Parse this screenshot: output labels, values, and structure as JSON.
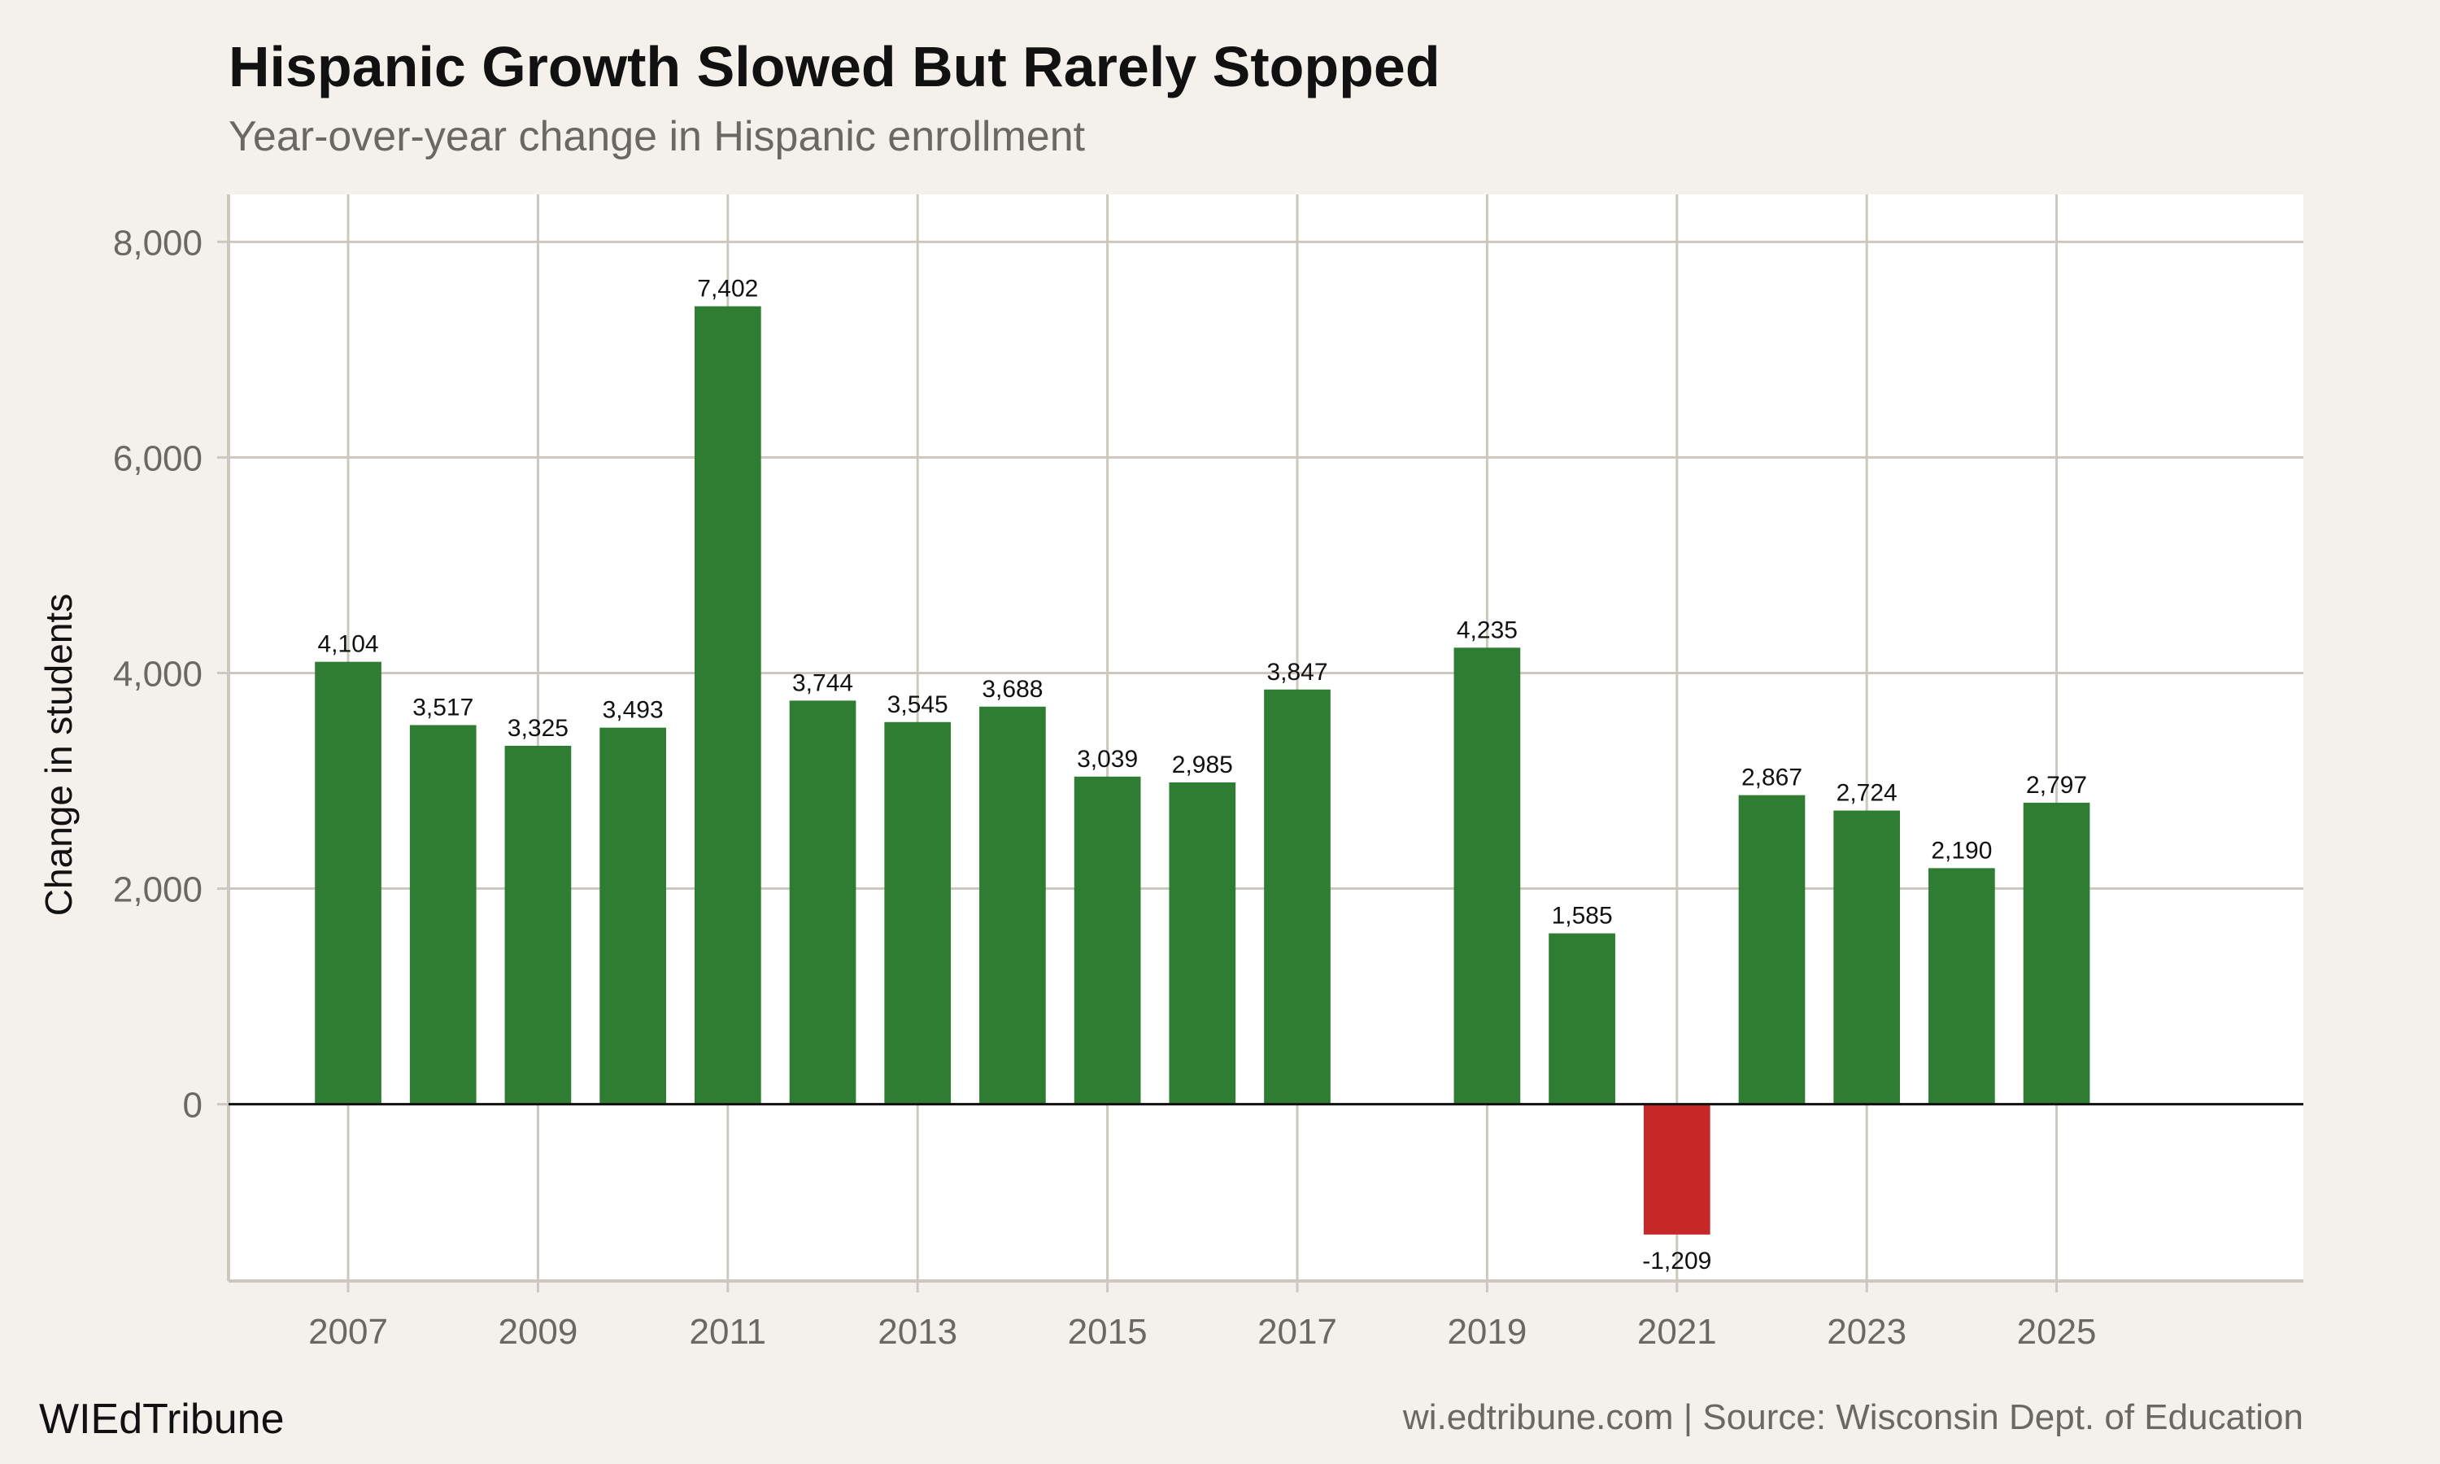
{
  "title": "Hispanic Growth Slowed But Rarely Stopped",
  "subtitle": "Year-over-year change in Hispanic enrollment",
  "brand": "WIEdTribune",
  "source": "wi.edtribune.com | Source: Wisconsin Dept. of Education",
  "colors": {
    "positive": "#2e7d32",
    "negative": "#c62828",
    "grid": "#cdc8bf",
    "background": "#f4f1ec",
    "panel": "#ffffff"
  },
  "chart_data": {
    "type": "bar",
    "title": "Hispanic Growth Slowed But Rarely Stopped",
    "subtitle": "Year-over-year change in Hispanic enrollment",
    "xlabel": "",
    "ylabel": "Change in students",
    "x": [
      2007,
      2008,
      2009,
      2010,
      2011,
      2012,
      2013,
      2014,
      2015,
      2016,
      2017,
      2019,
      2020,
      2021,
      2022,
      2023,
      2024,
      2025
    ],
    "values": [
      4104,
      3517,
      3325,
      3493,
      7402,
      3744,
      3545,
      3688,
      3039,
      2985,
      3847,
      4235,
      1585,
      -1209,
      2867,
      2724,
      2190,
      2797
    ],
    "data_labels": [
      "4,104",
      "3,517",
      "3,325",
      "3,493",
      "7,402",
      "3,744",
      "3,545",
      "3,688",
      "3,039",
      "2,985",
      "3,847",
      "4,235",
      "1,585",
      "-1,209",
      "2,867",
      "2,724",
      "2,190",
      "2,797"
    ],
    "xticks": [
      "2007",
      "2009",
      "2011",
      "2013",
      "2015",
      "2017",
      "2019",
      "2021",
      "2023",
      "2025"
    ],
    "yticks": [
      "0",
      "2,000",
      "4,000",
      "6,000",
      "8,000"
    ],
    "ytick_values": [
      0,
      2000,
      4000,
      6000,
      8000
    ],
    "xlim": [
      2005.74,
      2027.6
    ],
    "ylim": [
      -1640,
      8440
    ],
    "grid": true,
    "legend": "none"
  }
}
